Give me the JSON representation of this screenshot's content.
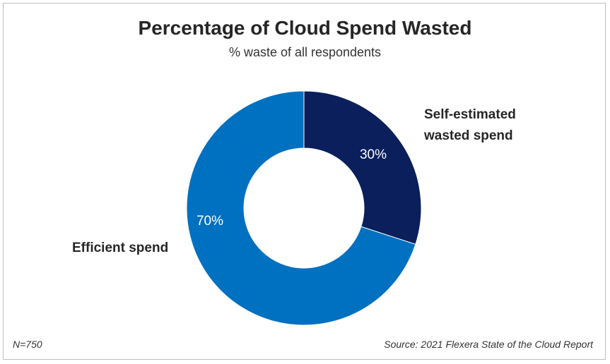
{
  "title": "Percentage of Cloud Spend Wasted",
  "subtitle": "% waste of all respondents",
  "sample_note": "N=750",
  "source_note": "Source: 2021 Flexera State of the Cloud Report",
  "colors": {
    "wasted": "#0a1f5c",
    "efficient": "#0070c0"
  },
  "chart_data": {
    "type": "pie",
    "donut": true,
    "categories": [
      "Self-estimated wasted spend",
      "Efficient spend"
    ],
    "category_label_lines": [
      [
        "Self-estimated",
        "wasted spend"
      ],
      [
        "Efficient spend"
      ]
    ],
    "values": [
      30,
      70
    ],
    "data_labels": [
      "30%",
      "70%"
    ],
    "title": "Percentage of Cloud Spend Wasted",
    "subtitle": "% waste of all respondents"
  }
}
